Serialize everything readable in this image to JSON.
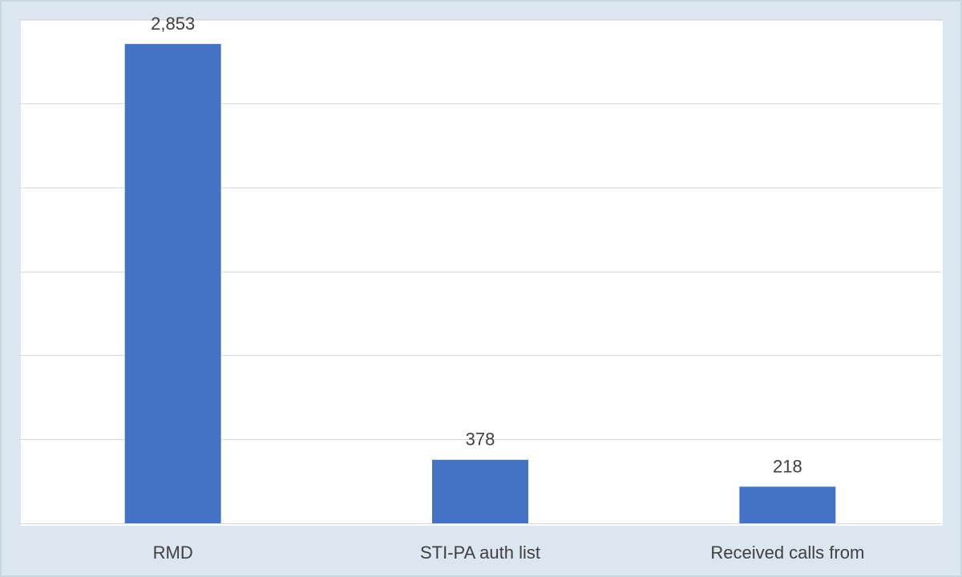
{
  "chart_data": {
    "type": "bar",
    "categories": [
      "RMD",
      "STI-PA auth list",
      "Received calls from"
    ],
    "values": [
      2853,
      378,
      218
    ],
    "data_labels": [
      "2,853",
      "378",
      "218"
    ],
    "title": "",
    "xlabel": "",
    "ylabel": "",
    "ylim": [
      0,
      3000
    ],
    "gridline_step": 500,
    "grid": true,
    "legend": "none",
    "bar_color": "#4472c4",
    "grid_color": "#d9d9d9",
    "axis_color": "#d9d9d9",
    "label_color": "#404040",
    "background_color": "#dce6f1",
    "plot_background_color": "#ffffff"
  }
}
